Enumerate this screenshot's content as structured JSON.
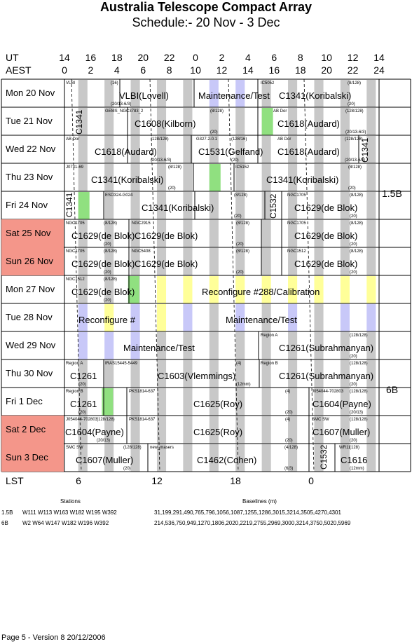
{
  "title": "Australia Telescope Compact Array",
  "subtitle": "Schedule:- 20 Nov - 3  Dec",
  "ut_label": "UT",
  "aest_label": "AEST",
  "lst_label": "LST",
  "ut_ticks": [
    "14",
    "16",
    "18",
    "20",
    "22",
    "0",
    "2",
    "4",
    "6",
    "8",
    "10",
    "12",
    "14"
  ],
  "aest_ticks": [
    "0",
    "2",
    "4",
    "6",
    "8",
    "10",
    "12",
    "14",
    "16",
    "18",
    "20",
    "22",
    "24"
  ],
  "lst_ticks": [
    "6",
    "12",
    "18",
    "0"
  ],
  "days": [
    {
      "label": "Mon  20 Nov",
      "weekend": false
    },
    {
      "label": "Tue  21 Nov",
      "weekend": false
    },
    {
      "label": "Wed  22 Nov",
      "weekend": false
    },
    {
      "label": "Thu  23 Nov",
      "weekend": false
    },
    {
      "label": "Fri   24 Nov",
      "weekend": false
    },
    {
      "label": "Sat  25 Nov",
      "weekend": true
    },
    {
      "label": "Sun  26 Nov",
      "weekend": true
    },
    {
      "label": "Mon  27 Nov",
      "weekend": false
    },
    {
      "label": "Tue  28 Nov",
      "weekend": false
    },
    {
      "label": "Wed  29 Nov",
      "weekend": false
    },
    {
      "label": "Thu  30 Nov",
      "weekend": false
    },
    {
      "label": "Fri    1  Dec",
      "weekend": false
    },
    {
      "label": "Sat   2  Dec",
      "weekend": true
    },
    {
      "label": "Sun   3  Dec",
      "weekend": true
    }
  ],
  "configs": [
    {
      "label": "1.5B"
    },
    {
      "label": "6B"
    }
  ],
  "blocks": [
    {
      "row": 0,
      "big": "VLBI(Lovell)",
      "tl": "VLBI",
      "tr": "(16)",
      "br": "(20/13-6/3)"
    },
    {
      "row": 0,
      "big": "Maintenance/Test"
    },
    {
      "row": 0,
      "big": "C1341(Koribalski)",
      "tl": "IC5052",
      "tr": "(8/128)",
      "br": "(20)"
    },
    {
      "row": 1,
      "big": "C1608(Kilborn)",
      "tl": "GEMS_NGC3783_2",
      "tr": "(8/128)",
      "br": "(20)"
    },
    {
      "row": 1,
      "big": "C1618(Audard)",
      "tl": "AB Dor",
      "tr": "(128/128)",
      "br": "(20/13-6/3)"
    },
    {
      "row": 2,
      "big": "C1618(Audard)",
      "tl": "AB Dor",
      "tr": "(128/128)",
      "br": "(20/13-6/3)"
    },
    {
      "row": 2,
      "big": "C1531(Gelfand)",
      "tl": "G327.2-0.1",
      "tr": "(128/16)",
      "br": "(20)"
    },
    {
      "row": 2,
      "big": "C1618(Audard)",
      "tl": "AB Dor",
      "tr": "(128/128)",
      "br": "(20/13-6/3)"
    },
    {
      "row": 3,
      "big": "C1341(Koribalski)",
      "tl": "J0731-69",
      "tr": "(8/128)",
      "br": "(20)"
    },
    {
      "row": 3,
      "big": "C1341(Koribalski)",
      "tl": "IC5152",
      "tr": "(8/128)",
      "br": "(20)"
    },
    {
      "row": 4,
      "big": "C1341(Koribalski)",
      "tl": "ESO324-G024",
      "tr": "(8/128)",
      "br": "(20)"
    },
    {
      "row": 4,
      "big": "C1629(de Blok)",
      "tl": "NGC1705",
      "tr": "(8/128)",
      "br": "(20)"
    },
    {
      "row": 5,
      "big": "C1629(de Blok)",
      "tl": "NGC1705",
      "tr": "(8/128)",
      "br": "(20)"
    },
    {
      "row": 5,
      "big": "C1629(de Blok)",
      "tl": "NGC2915",
      "tr": "(8/128)",
      "br": "(20)"
    },
    {
      "row": 5,
      "big": "C1629(de Blok)",
      "tl": "NGC1705",
      "tr": "(8/128)",
      "br": "(20)"
    },
    {
      "row": 6,
      "big": "C1629(de Blok)",
      "tl": "NGC1705",
      "tr": "(8/128)",
      "br": "(20)"
    },
    {
      "row": 6,
      "big": "C1629(de Blok)",
      "tl": "NGC5408",
      "tr": "(8/128)",
      "br": "(20)"
    },
    {
      "row": 6,
      "big": "C1629(de Blok)",
      "tl": "NGC1512",
      "tr": "(8/128)",
      "br": "(20)"
    },
    {
      "row": 7,
      "big": "C1629(de Blok)",
      "tl": "NGC1512",
      "tr": "(8/128)",
      "br": "(20)"
    },
    {
      "row": 7,
      "big": "Reconfigure #288/Calibration"
    },
    {
      "row": 8,
      "big": "Reconfigure #"
    },
    {
      "row": 8,
      "big": "Maintenance/Test"
    },
    {
      "row": 9,
      "big": "Maintenance/Test"
    },
    {
      "row": 9,
      "big": "C1261(Subrahmanyan)",
      "tl": "Region A",
      "tr": "(128/128)",
      "br": "(20)"
    },
    {
      "row": 10,
      "big": "C1261",
      "tl": "Region A",
      "br": "(20)"
    },
    {
      "row": 10,
      "big": "C1603(Vlemmings)",
      "tl": "IRAS15445-5449",
      "tr": "(4)",
      "br": "(12mm)"
    },
    {
      "row": 10,
      "big": "C1261(Subrahmanyan)",
      "tl": "Region B",
      "tr": "(128/128)",
      "br": "(20)"
    },
    {
      "row": 11,
      "big": "C1261",
      "tl": "Region B",
      "br": "(20)"
    },
    {
      "row": 11,
      "big": "C1625(Roy)",
      "tl": "PKS1814-637",
      "tr": "(4)",
      "br": "(20)"
    },
    {
      "row": 11,
      "big": "C1604(Payne)",
      "tl": "J054044-702803",
      "tr": "(128/128)",
      "br": "(20/13)"
    },
    {
      "row": 12,
      "big": "C1604(Payne)",
      "tl": "J054044-702803",
      "tr": "(128/128)",
      "br": "(20/13)"
    },
    {
      "row": 12,
      "big": "C1625(Roy)",
      "tl": "PKS1814-637",
      "tr": "(4)",
      "br": "(20)"
    },
    {
      "row": 12,
      "big": "C1607(Muller)",
      "tl": "SMC SW",
      "tr": "(128/128)",
      "br": "(20)"
    },
    {
      "row": 13,
      "big": "C1607(Muller)",
      "tl": "SMC SW",
      "tr": "(128/128)",
      "br": "(20)"
    },
    {
      "row": 13,
      "big": "C1462(Cohen)",
      "tl": "new_masers",
      "tr": "(4/128)",
      "br": "(6/3)"
    },
    {
      "row": 13,
      "big": "C1616",
      "tl": "WR11",
      "tr": "(128)",
      "br": "(12mm)"
    }
  ],
  "vertical_labels": [
    {
      "text": "C1341"
    },
    {
      "text": "C1341"
    },
    {
      "text": "C1341"
    },
    {
      "text": "C1532"
    },
    {
      "text": "C1532"
    }
  ],
  "footer": {
    "stations_header": "Stations",
    "baselines_header": "Baselines (m)",
    "rows": [
      {
        "config": "1.5B",
        "stations": "W111  W113  W163  W182  W195  W392",
        "baselines": "31,199,291,490,765,796,1056,1087,1255,1286,3015,3214,3505,4270,4301"
      },
      {
        "config": "6B",
        "stations": "W2  W64  W147  W182  W196  W392",
        "baselines": "214,536,750,949,1270,1806,2020,2219,2755,2969,3000,3214,3750,5020,5969"
      }
    ],
    "page_note": "Page 5 - Version 8  20/12/2006"
  },
  "colors": {
    "weekend": "#f4968a",
    "stripe_gray": "#c8c8c8",
    "stripe_blue": "#c8c8f8",
    "stripe_yellow": "#ffff99",
    "green": "#90e080",
    "grid": "#000000"
  }
}
